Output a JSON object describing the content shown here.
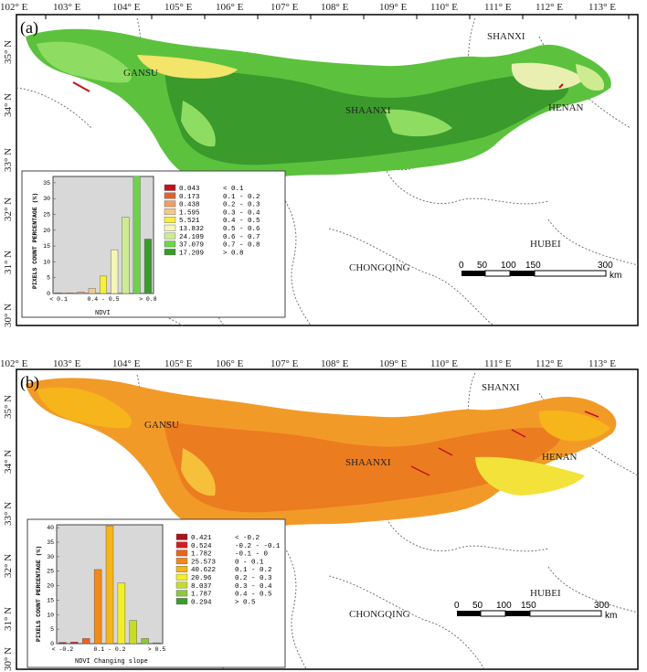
{
  "panels": [
    {
      "label": "(a)",
      "lon_labels": [
        "102° E",
        "103° E",
        "104° E",
        "105° E",
        "106° E",
        "107° E",
        "108° E",
        "109° E",
        "110° E",
        "111° E",
        "112° E",
        "113° E"
      ],
      "lat_labels": [
        "35° N",
        "34° N",
        "33° N",
        "32° N",
        "31° N",
        "30° N"
      ],
      "provinces": [
        "GANSU",
        "SHAANXI",
        "HENAN",
        "SHANXI",
        "CHONGQING",
        "HUBEI"
      ],
      "scalebar": {
        "ticks": [
          "0",
          "50",
          "100",
          "150",
          "300"
        ],
        "unit": "km"
      },
      "chart_data": {
        "type": "bar",
        "ylabel": "PIXELS COUNT PERCENTAGE (%)",
        "xlabel": "NDVI",
        "x_tick_labels": [
          "< 0.1",
          "0.4 - 0.5",
          "> 0.8"
        ],
        "y_ticks": [
          "0",
          "5",
          "10",
          "15",
          "20",
          "25",
          "30",
          "35"
        ],
        "ylim": [
          0,
          37
        ],
        "categories": [
          "< 0.1",
          "0.1 - 0.2",
          "0.2 - 0.3",
          "0.3 - 0.4",
          "0.4 - 0.5",
          "0.5 - 0.6",
          "0.6 - 0.7",
          "0.7 - 0.8",
          "> 0.8"
        ],
        "values": [
          0.043,
          0.173,
          0.438,
          1.595,
          5.521,
          13.832,
          24.109,
          37.079,
          17.209
        ],
        "legend_values": [
          "0.043",
          "0.173",
          "0.438",
          "1.595",
          "5.521",
          "13.832",
          "24.109",
          "37.079",
          "17.209"
        ],
        "colors": [
          "#c0141b",
          "#e2622a",
          "#eda064",
          "#f3c98c",
          "#f8ef3c",
          "#f4f6b8",
          "#cdeb91",
          "#6fd34a",
          "#3a9b2c"
        ]
      }
    },
    {
      "label": "(b)",
      "lon_labels": [
        "102° E",
        "103° E",
        "104° E",
        "105° E",
        "106° E",
        "107° E",
        "108° E",
        "109° E",
        "110° E",
        "111° E",
        "112° E",
        "113° E"
      ],
      "lat_labels": [
        "35° N",
        "34° N",
        "33° N",
        "32° N",
        "31° N",
        "30° N"
      ],
      "provinces": [
        "GANSU",
        "SHAANXI",
        "HENAN",
        "SHANXI",
        "CHONGQING",
        "HUBEI"
      ],
      "scalebar": {
        "ticks": [
          "0",
          "50",
          "100",
          "150",
          "300"
        ],
        "unit": "km"
      },
      "chart_data": {
        "type": "bar",
        "ylabel": "PIXELS COUNT PERCENTAGE (%)",
        "xlabel": "NDVI Changing slope",
        "x_tick_labels": [
          "< -0.2",
          "0.1 - 0.2",
          "> 0.5"
        ],
        "y_ticks": [
          "0",
          "5",
          "10",
          "15",
          "20",
          "25",
          "30",
          "35",
          "40"
        ],
        "ylim": [
          0,
          41
        ],
        "categories": [
          "< -0.2",
          "-0.2 - -0.1",
          "-0.1 - 0",
          "0 - 0.1",
          "0.1 - 0.2",
          "0.2 - 0.3",
          "0.3 - 0.4",
          "0.4 - 0.5",
          "> 0.5"
        ],
        "values": [
          0.421,
          0.524,
          1.782,
          25.573,
          40.622,
          20.96,
          8.037,
          1.787,
          0.294
        ],
        "legend_values": [
          "0.421",
          "0.524",
          "1.782",
          "25.573",
          "40.622",
          "20.96",
          "8.037",
          "1.787",
          "0.294"
        ],
        "colors": [
          "#a8141b",
          "#d01e22",
          "#e8641c",
          "#f08a1c",
          "#f6b51a",
          "#f2ef2a",
          "#c6dc2a",
          "#8ec83a",
          "#3c9b2c"
        ]
      }
    }
  ]
}
